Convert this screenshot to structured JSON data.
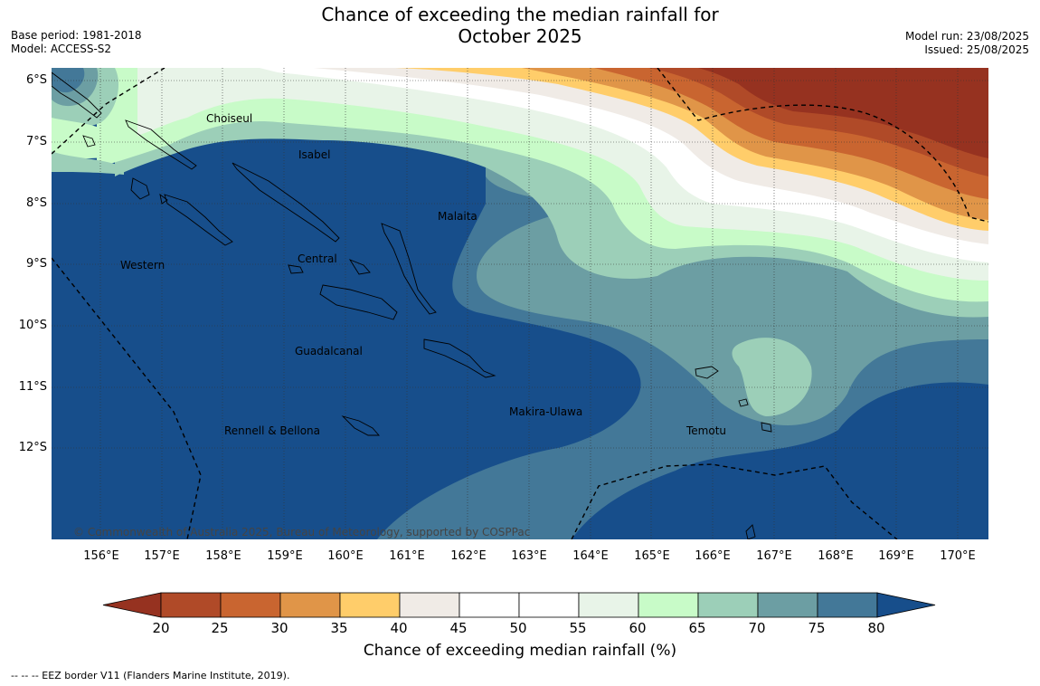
{
  "title_line1": "Chance of exceeding the median rainfall for",
  "title_line2": "October 2025",
  "base_period": "Base period: 1981-2018",
  "model": "Model: ACCESS-S2",
  "model_run": "Model run: 23/08/2025",
  "issued": "Issued: 25/08/2025",
  "copyright": "© Commonwealth of Australia 2025, Bureau of Meteorology, supported by COSPPac",
  "eez_note": "-- -- -- EEZ border V11 (Flanders Marine Institute, 2019).",
  "colorbar_title": "Chance of exceeding median rainfall (%)",
  "lat_labels": [
    "6°S",
    "7°S",
    "8°S",
    "9°S",
    "10°S",
    "11°S",
    "12°S"
  ],
  "lon_labels": [
    "156°E",
    "157°E",
    "158°E",
    "159°E",
    "160°E",
    "161°E",
    "162°E",
    "163°E",
    "164°E",
    "165°E",
    "166°E",
    "167°E",
    "168°E",
    "169°E",
    "170°E"
  ],
  "regions": {
    "choiseul": "Choiseul",
    "isabel": "Isabel",
    "malaita": "Malaita",
    "western": "Western",
    "central": "Central",
    "guadalcanal": "Guadalcanal",
    "makira": "Makira-Ulawa",
    "rennell": "Rennell & Bellona",
    "temotu": "Temotu"
  },
  "colorbar": {
    "ticks": [
      "20",
      "25",
      "30",
      "35",
      "40",
      "45",
      "50",
      "55",
      "60",
      "65",
      "70",
      "75",
      "80"
    ],
    "colors": {
      "below_20": "#963220",
      "c20_25": "#b04a28",
      "c25_30": "#c96530",
      "c30_35": "#e09548",
      "c35_40": "#ffcd6a",
      "c40_45": "#f0ebe6",
      "c45_50": "#ffffff",
      "c50_55": "#ffffff",
      "c55_60": "#e8f4e8",
      "c60_65": "#c8fbc8",
      "c65_70": "#9ccfb8",
      "c70_75": "#6c9ea3",
      "c75_80": "#437898",
      "above_80": "#174e8b"
    }
  }
}
